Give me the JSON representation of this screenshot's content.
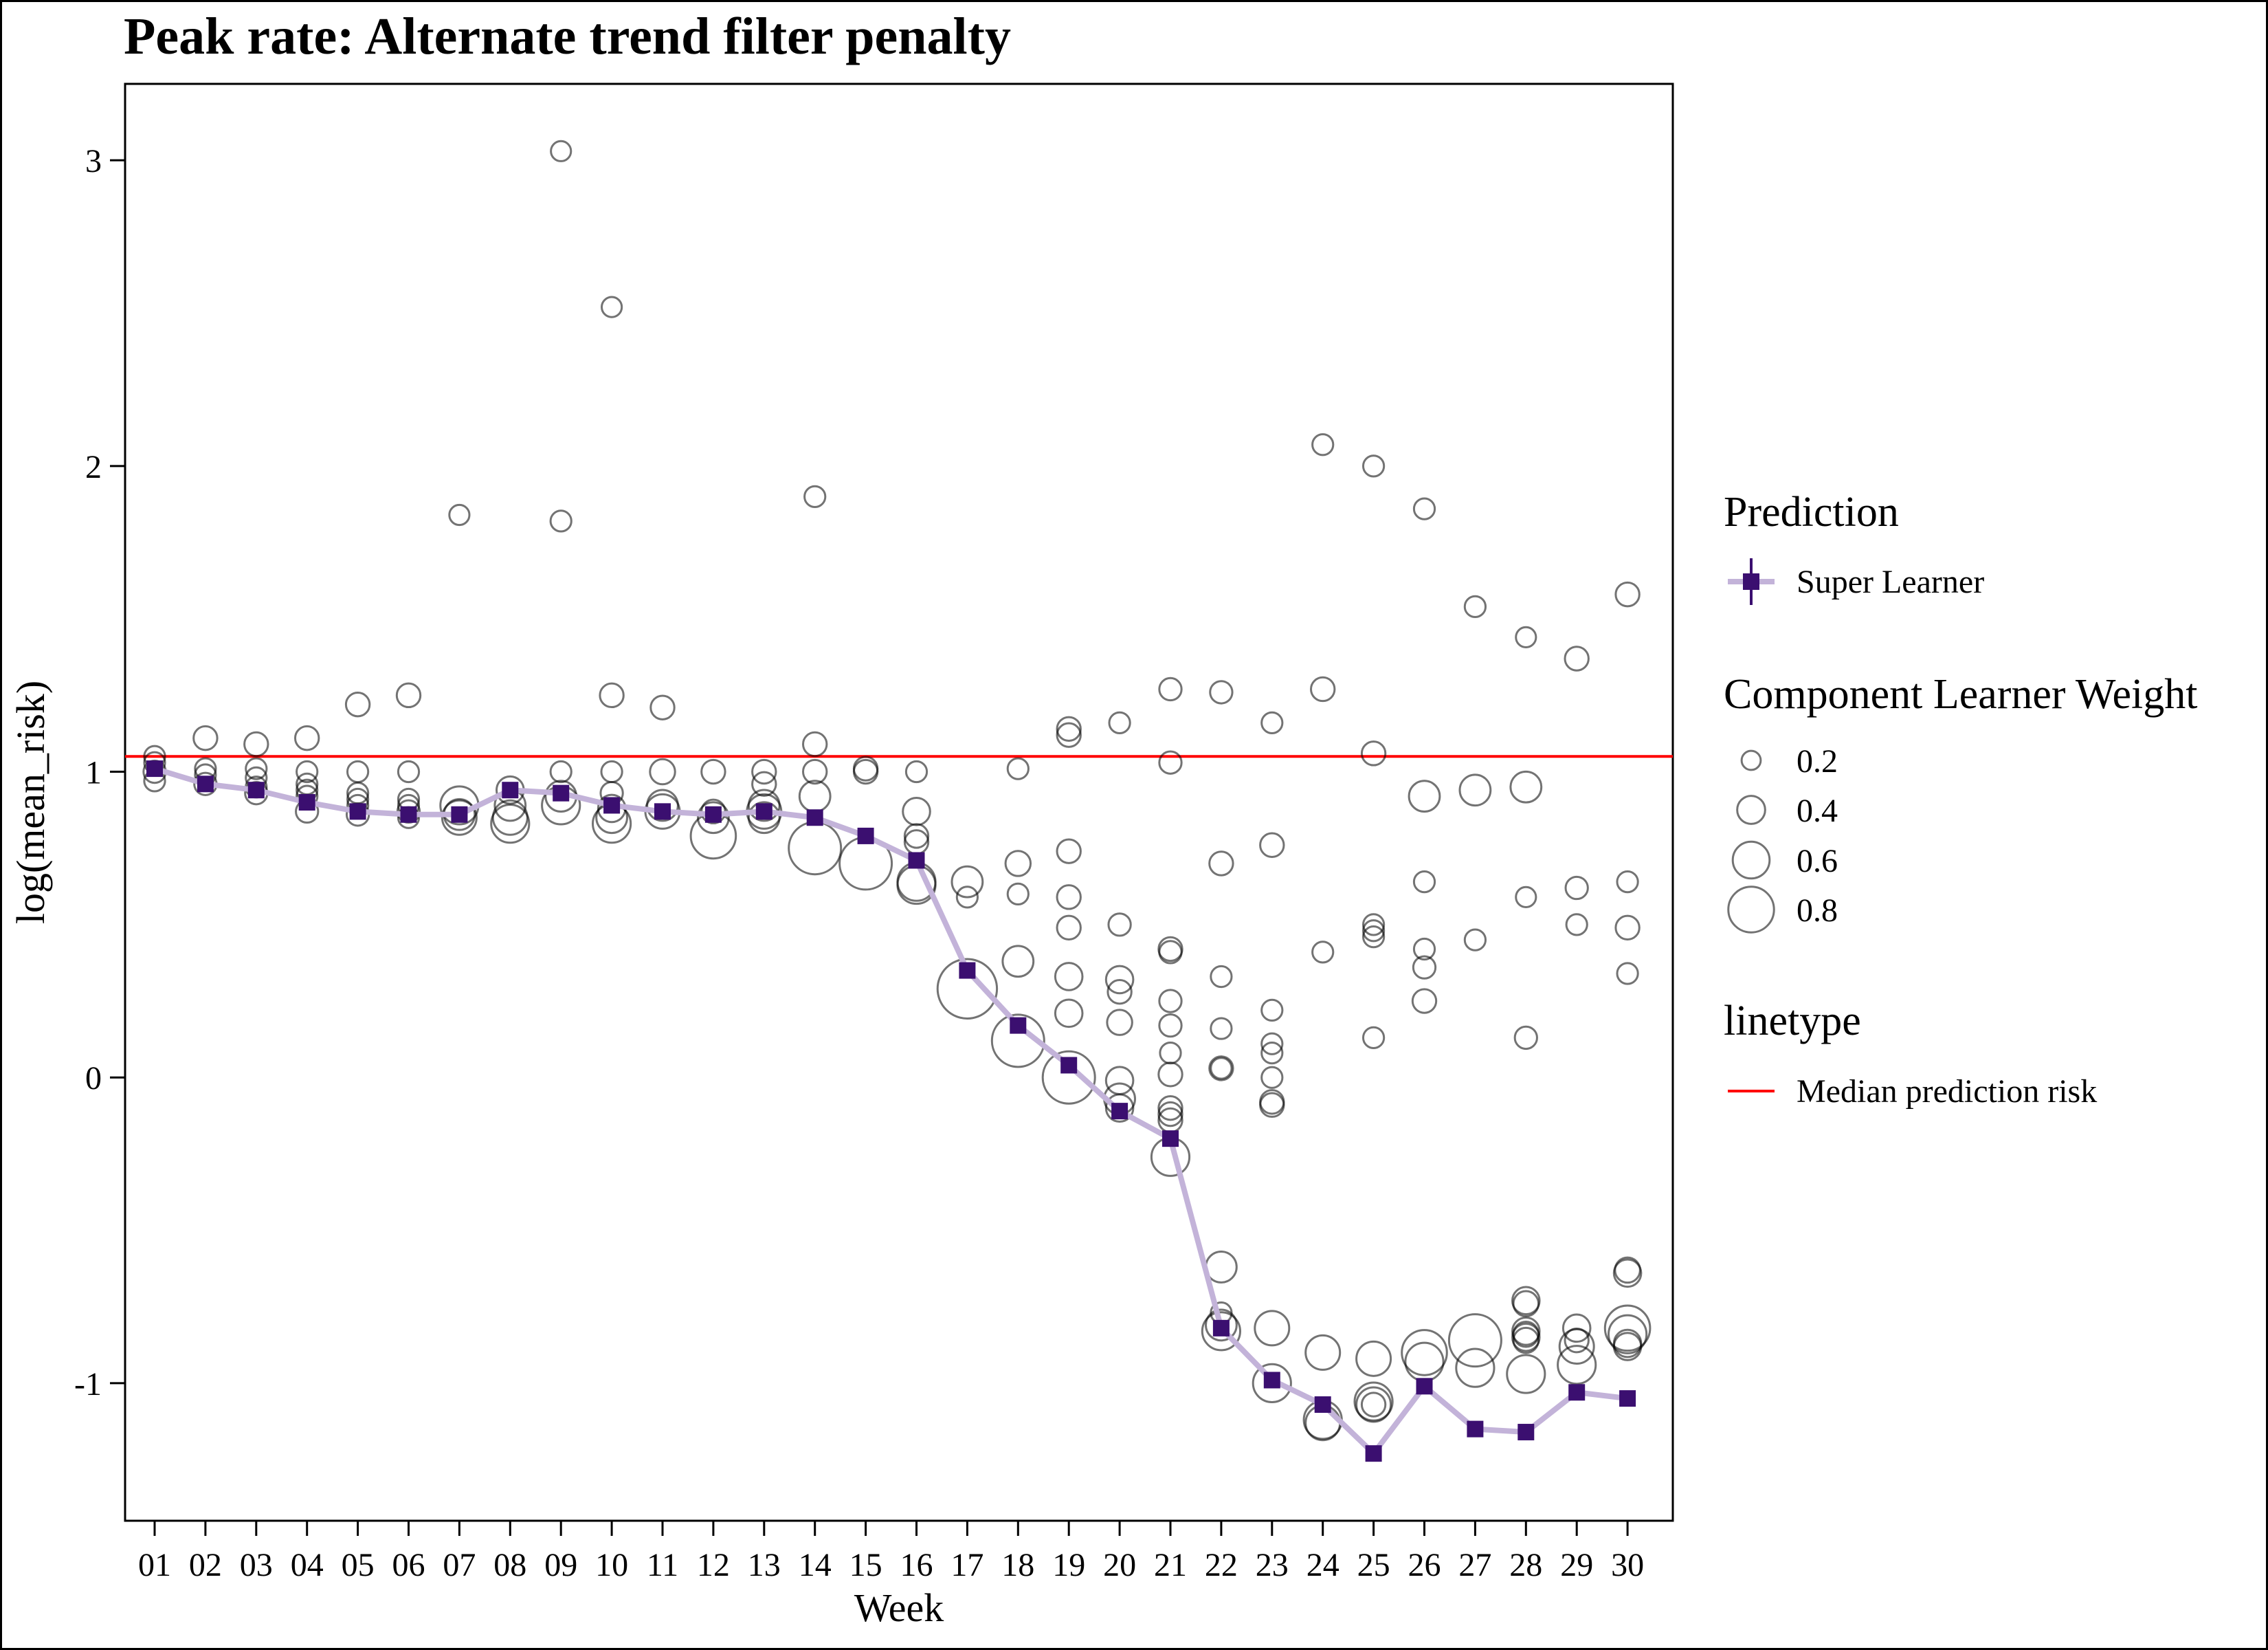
{
  "chart_data": {
    "type": "scatter",
    "title": "Peak rate: Alternate trend filter penalty",
    "xlabel": "Week",
    "ylabel": "log(mean_risk)",
    "x_categories": [
      "01",
      "02",
      "03",
      "04",
      "05",
      "06",
      "07",
      "08",
      "09",
      "10",
      "11",
      "12",
      "13",
      "14",
      "15",
      "16",
      "17",
      "18",
      "19",
      "20",
      "21",
      "22",
      "23",
      "24",
      "25",
      "26",
      "27",
      "28",
      "29",
      "30"
    ],
    "ylim": [
      -1.45,
      3.25
    ],
    "y_ticks": [
      -1,
      0,
      1,
      2,
      3
    ],
    "y_tick_labels": [
      "-1",
      "0",
      "1",
      "2",
      "3"
    ],
    "grid": false,
    "legend_placement": "right",
    "reference_line": {
      "name": "Median prediction risk",
      "y": 1.05,
      "color": "#ff0000"
    },
    "super_learner": {
      "name": "Super Learner",
      "color": "#3b0f70",
      "line_color": "#c3b3d9",
      "values": [
        1.01,
        0.96,
        0.94,
        0.9,
        0.87,
        0.86,
        0.86,
        0.94,
        0.93,
        0.89,
        0.87,
        0.86,
        0.87,
        0.85,
        0.79,
        0.71,
        0.35,
        0.17,
        0.04,
        -0.11,
        -0.2,
        -0.82,
        -0.99,
        -1.07,
        -1.23,
        -1.01,
        -1.15,
        -1.16,
        -1.03,
        -1.05
      ]
    },
    "component_learners": [
      {
        "week": 1,
        "points": [
          [
            1.05,
            0.06
          ],
          [
            1.03,
            0.06
          ],
          [
            1.0,
            0.08
          ],
          [
            0.97,
            0.06
          ]
        ]
      },
      {
        "week": 2,
        "points": [
          [
            1.11,
            0.1
          ],
          [
            1.01,
            0.06
          ],
          [
            0.99,
            0.06
          ],
          [
            0.96,
            0.08
          ]
        ]
      },
      {
        "week": 3,
        "points": [
          [
            1.09,
            0.1
          ],
          [
            1.01,
            0.06
          ],
          [
            0.98,
            0.06
          ],
          [
            0.95,
            0.06
          ],
          [
            0.93,
            0.08
          ]
        ]
      },
      {
        "week": 4,
        "points": [
          [
            1.11,
            0.1
          ],
          [
            1.0,
            0.06
          ],
          [
            0.96,
            0.06
          ],
          [
            0.94,
            0.06
          ],
          [
            0.92,
            0.06
          ],
          [
            0.87,
            0.08
          ]
        ]
      },
      {
        "week": 5,
        "points": [
          [
            1.22,
            0.1
          ],
          [
            1.0,
            0.06
          ],
          [
            0.93,
            0.06
          ],
          [
            0.91,
            0.06
          ],
          [
            0.89,
            0.06
          ],
          [
            0.86,
            0.08
          ]
        ]
      },
      {
        "week": 6,
        "points": [
          [
            1.25,
            0.1
          ],
          [
            1.0,
            0.06
          ],
          [
            0.91,
            0.06
          ],
          [
            0.89,
            0.06
          ],
          [
            0.87,
            0.08
          ],
          [
            0.85,
            0.06
          ]
        ]
      },
      {
        "week": 7,
        "points": [
          [
            1.84,
            0.05
          ],
          [
            0.89,
            0.3
          ],
          [
            0.86,
            0.2
          ],
          [
            0.85,
            0.25
          ]
        ]
      },
      {
        "week": 8,
        "points": [
          [
            0.94,
            0.15
          ],
          [
            0.89,
            0.2
          ],
          [
            0.85,
            0.25
          ],
          [
            0.83,
            0.3
          ]
        ]
      },
      {
        "week": 9,
        "points": [
          [
            3.03,
            0.05
          ],
          [
            1.82,
            0.06
          ],
          [
            1.0,
            0.06
          ],
          [
            0.92,
            0.2
          ],
          [
            0.89,
            0.3
          ]
        ]
      },
      {
        "week": 10,
        "points": [
          [
            2.52,
            0.05
          ],
          [
            1.25,
            0.1
          ],
          [
            1.0,
            0.06
          ],
          [
            0.93,
            0.08
          ],
          [
            0.88,
            0.15
          ],
          [
            0.85,
            0.2
          ],
          [
            0.83,
            0.3
          ]
        ]
      },
      {
        "week": 11,
        "points": [
          [
            1.21,
            0.1
          ],
          [
            1.0,
            0.12
          ],
          [
            0.89,
            0.2
          ],
          [
            0.87,
            0.25
          ]
        ]
      },
      {
        "week": 12,
        "points": [
          [
            1.0,
            0.1
          ],
          [
            0.87,
            0.1
          ],
          [
            0.85,
            0.2
          ],
          [
            0.79,
            0.4
          ]
        ]
      },
      {
        "week": 13,
        "points": [
          [
            1.0,
            0.1
          ],
          [
            0.96,
            0.1
          ],
          [
            0.89,
            0.2
          ],
          [
            0.87,
            0.25
          ],
          [
            0.85,
            0.2
          ]
        ]
      },
      {
        "week": 14,
        "points": [
          [
            1.9,
            0.06
          ],
          [
            1.09,
            0.1
          ],
          [
            1.0,
            0.1
          ],
          [
            0.92,
            0.2
          ],
          [
            0.75,
            0.5
          ]
        ]
      },
      {
        "week": 15,
        "points": [
          [
            1.01,
            0.1
          ],
          [
            1.0,
            0.1
          ],
          [
            0.7,
            0.5
          ]
        ]
      },
      {
        "week": 16,
        "points": [
          [
            1.0,
            0.06
          ],
          [
            0.87,
            0.15
          ],
          [
            0.79,
            0.1
          ],
          [
            0.77,
            0.1
          ],
          [
            0.64,
            0.3
          ],
          [
            0.63,
            0.3
          ]
        ]
      },
      {
        "week": 17,
        "points": [
          [
            0.64,
            0.2
          ],
          [
            0.59,
            0.06
          ],
          [
            0.29,
            0.6
          ]
        ]
      },
      {
        "week": 18,
        "points": [
          [
            1.01,
            0.06
          ],
          [
            0.7,
            0.12
          ],
          [
            0.6,
            0.06
          ],
          [
            0.38,
            0.2
          ],
          [
            0.12,
            0.5
          ]
        ]
      },
      {
        "week": 19,
        "points": [
          [
            1.14,
            0.1
          ],
          [
            1.12,
            0.1
          ],
          [
            0.74,
            0.1
          ],
          [
            0.59,
            0.1
          ],
          [
            0.49,
            0.1
          ],
          [
            0.33,
            0.15
          ],
          [
            0.21,
            0.15
          ],
          [
            0.0,
            0.5
          ]
        ]
      },
      {
        "week": 20,
        "points": [
          [
            1.16,
            0.06
          ],
          [
            0.5,
            0.08
          ],
          [
            0.32,
            0.15
          ],
          [
            0.28,
            0.1
          ],
          [
            0.18,
            0.12
          ],
          [
            -0.01,
            0.15
          ],
          [
            -0.07,
            0.2
          ],
          [
            -0.1,
            0.15
          ]
        ]
      },
      {
        "week": 21,
        "points": [
          [
            1.27,
            0.08
          ],
          [
            1.03,
            0.08
          ],
          [
            0.42,
            0.1
          ],
          [
            0.41,
            0.08
          ],
          [
            0.25,
            0.08
          ],
          [
            0.17,
            0.08
          ],
          [
            0.08,
            0.06
          ],
          [
            0.01,
            0.1
          ],
          [
            -0.1,
            0.1
          ],
          [
            -0.12,
            0.1
          ],
          [
            -0.14,
            0.1
          ],
          [
            -0.26,
            0.3
          ]
        ]
      },
      {
        "week": 22,
        "points": [
          [
            1.26,
            0.08
          ],
          [
            0.7,
            0.1
          ],
          [
            0.33,
            0.06
          ],
          [
            0.16,
            0.06
          ],
          [
            0.03,
            0.1
          ],
          [
            0.03,
            0.06
          ],
          [
            -0.62,
            0.2
          ],
          [
            -0.77,
            0.06
          ],
          [
            -0.81,
            0.2
          ],
          [
            -0.83,
            0.3
          ]
        ]
      },
      {
        "week": 23,
        "points": [
          [
            1.16,
            0.06
          ],
          [
            0.76,
            0.1
          ],
          [
            0.22,
            0.06
          ],
          [
            0.11,
            0.06
          ],
          [
            0.08,
            0.06
          ],
          [
            0.0,
            0.06
          ],
          [
            -0.08,
            0.1
          ],
          [
            -0.09,
            0.1
          ],
          [
            -0.82,
            0.25
          ],
          [
            -1.0,
            0.3
          ]
        ]
      },
      {
        "week": 24,
        "points": [
          [
            2.07,
            0.06
          ],
          [
            1.27,
            0.1
          ],
          [
            0.41,
            0.06
          ],
          [
            -0.9,
            0.25
          ],
          [
            -1.12,
            0.3
          ],
          [
            -1.13,
            0.25
          ]
        ]
      },
      {
        "week": 25,
        "points": [
          [
            2.0,
            0.06
          ],
          [
            1.06,
            0.1
          ],
          [
            0.5,
            0.06
          ],
          [
            0.48,
            0.06
          ],
          [
            0.46,
            0.06
          ],
          [
            0.13,
            0.06
          ],
          [
            -0.92,
            0.25
          ],
          [
            -1.06,
            0.3
          ],
          [
            -1.07,
            0.25
          ],
          [
            -1.07,
            0.1
          ]
        ]
      },
      {
        "week": 26,
        "points": [
          [
            1.86,
            0.06
          ],
          [
            0.92,
            0.2
          ],
          [
            0.64,
            0.06
          ],
          [
            0.42,
            0.06
          ],
          [
            0.36,
            0.08
          ],
          [
            0.25,
            0.1
          ],
          [
            -0.9,
            0.4
          ],
          [
            -0.93,
            0.3
          ]
        ]
      },
      {
        "week": 27,
        "points": [
          [
            1.54,
            0.06
          ],
          [
            0.94,
            0.2
          ],
          [
            0.45,
            0.06
          ],
          [
            -0.86,
            0.5
          ],
          [
            -0.95,
            0.3
          ]
        ]
      },
      {
        "week": 28,
        "points": [
          [
            1.44,
            0.05
          ],
          [
            0.95,
            0.2
          ],
          [
            0.59,
            0.05
          ],
          [
            0.13,
            0.08
          ],
          [
            -0.73,
            0.15
          ],
          [
            -0.74,
            0.12
          ],
          [
            -0.83,
            0.15
          ],
          [
            -0.84,
            0.12
          ],
          [
            -0.85,
            0.15
          ],
          [
            -0.86,
            0.12
          ],
          [
            -0.97,
            0.3
          ]
        ]
      },
      {
        "week": 29,
        "points": [
          [
            1.37,
            0.1
          ],
          [
            0.62,
            0.08
          ],
          [
            0.5,
            0.06
          ],
          [
            -0.82,
            0.15
          ],
          [
            -0.86,
            0.1
          ],
          [
            -0.88,
            0.25
          ],
          [
            -0.94,
            0.3
          ]
        ]
      },
      {
        "week": 30,
        "points": [
          [
            1.58,
            0.1
          ],
          [
            0.64,
            0.06
          ],
          [
            0.49,
            0.1
          ],
          [
            0.34,
            0.06
          ],
          [
            -0.63,
            0.12
          ],
          [
            -0.64,
            0.15
          ],
          [
            -0.82,
            0.4
          ],
          [
            -0.84,
            0.3
          ],
          [
            -0.87,
            0.15
          ],
          [
            -0.88,
            0.15
          ]
        ]
      }
    ],
    "legend": {
      "prediction_title": "Prediction",
      "prediction_label": "Super Learner",
      "weight_title": "Component Learner Weight",
      "weight_values": [
        0.2,
        0.4,
        0.6,
        0.8
      ],
      "weight_labels": [
        "0.2",
        "0.4",
        "0.6",
        "0.8"
      ],
      "linetype_title": "linetype",
      "linetype_label": "Median prediction risk"
    }
  }
}
